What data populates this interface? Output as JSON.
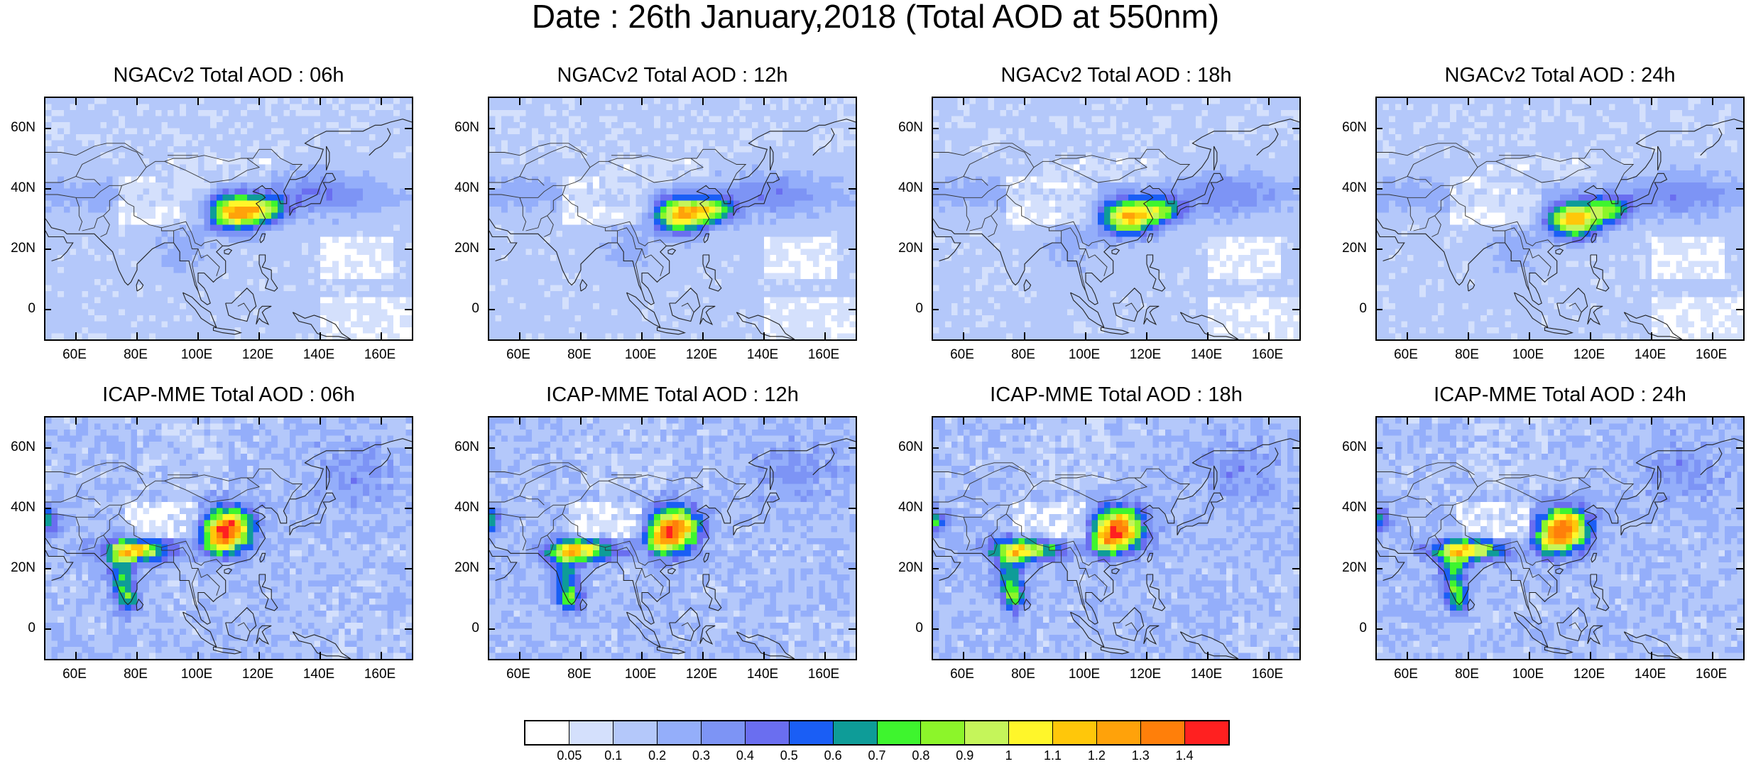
{
  "title": "Date : 26th January,2018 (Total AOD at 550nm)",
  "panels": [
    {
      "id": "ngac-06h",
      "title": "NGACv2 Total AOD : 06h",
      "model": "NGACv2",
      "hour": "06h"
    },
    {
      "id": "ngac-12h",
      "title": "NGACv2 Total AOD : 12h",
      "model": "NGACv2",
      "hour": "12h"
    },
    {
      "id": "ngac-18h",
      "title": "NGACv2 Total AOD : 18h",
      "model": "NGACv2",
      "hour": "18h"
    },
    {
      "id": "ngac-24h",
      "title": "NGACv2 Total AOD : 24h",
      "model": "NGACv2",
      "hour": "24h"
    },
    {
      "id": "icap-06h",
      "title": "ICAP-MME Total AOD : 06h",
      "model": "ICAP-MME",
      "hour": "06h"
    },
    {
      "id": "icap-12h",
      "title": "ICAP-MME Total AOD : 12h",
      "model": "ICAP-MME",
      "hour": "12h"
    },
    {
      "id": "icap-18h",
      "title": "ICAP-MME Total AOD : 18h",
      "model": "ICAP-MME",
      "hour": "18h"
    },
    {
      "id": "icap-24h",
      "title": "ICAP-MME Total AOD : 24h",
      "model": "ICAP-MME",
      "hour": "24h"
    }
  ],
  "axes": {
    "lat_range": [
      -10,
      70
    ],
    "lon_range": [
      50,
      170
    ],
    "lat_ticks": [
      {
        "value": 60,
        "label": "60N"
      },
      {
        "value": 40,
        "label": "40N"
      },
      {
        "value": 20,
        "label": "20N"
      },
      {
        "value": 0,
        "label": "0"
      }
    ],
    "lon_ticks": [
      {
        "value": 60,
        "label": "60E"
      },
      {
        "value": 80,
        "label": "80E"
      },
      {
        "value": 100,
        "label": "100E"
      },
      {
        "value": 120,
        "label": "120E"
      },
      {
        "value": 140,
        "label": "140E"
      },
      {
        "value": 160,
        "label": "160E"
      }
    ]
  },
  "colorbar": {
    "colors": [
      "#ffffff",
      "#d4e0fc",
      "#b4c8fa",
      "#94aefa",
      "#7d94f5",
      "#6a6ef0",
      "#1a5ef5",
      "#0e9c98",
      "#3ef52e",
      "#8cf52a",
      "#c5f55a",
      "#fff62a",
      "#ffc70a",
      "#ffa20a",
      "#ff7f0a",
      "#ff2020"
    ],
    "labels": [
      "0.05",
      "0.1",
      "0.2",
      "0.3",
      "0.4",
      "0.5",
      "0.6",
      "0.7",
      "0.8",
      "0.9",
      "1",
      "1.1",
      "1.2",
      "1.3",
      "1.4"
    ]
  }
}
